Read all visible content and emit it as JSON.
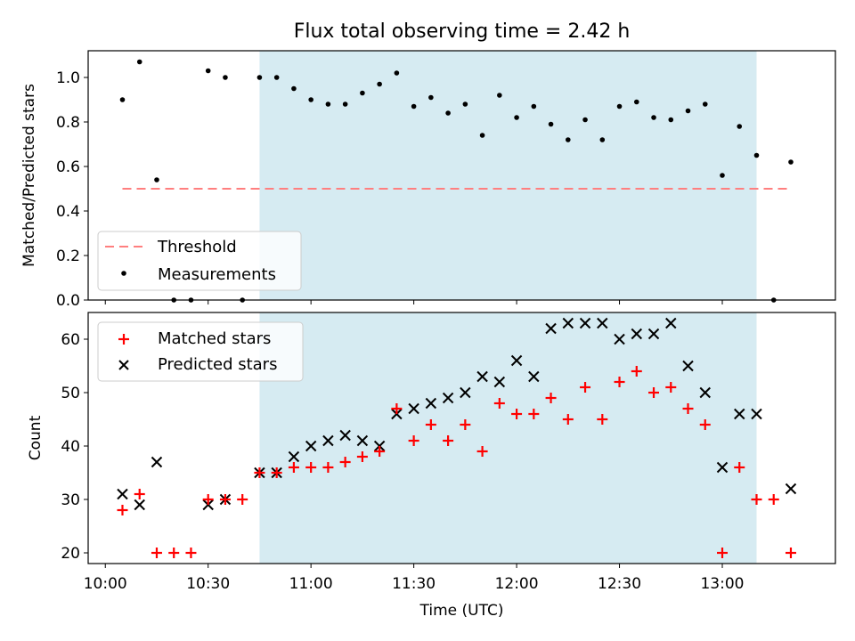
{
  "chart_data": [
    {
      "type": "scatter",
      "title": "Flux total observing time = 2.42 h",
      "ylabel": "Matched/Predicted stars",
      "xlim_minutes": [
        595,
        813
      ],
      "ylim": [
        0,
        1.12
      ],
      "yticks": [
        0.0,
        0.2,
        0.4,
        0.6,
        0.8,
        1.0
      ],
      "ytick_labels": [
        "0.0",
        "0.2",
        "0.4",
        "0.6",
        "0.8",
        "1.0"
      ],
      "shaded_interval_minutes": [
        645,
        790
      ],
      "threshold": {
        "name": "Threshold",
        "value": 0.5,
        "x_range_minutes": [
          605,
          800
        ],
        "color": "#ff7f7f"
      },
      "series": [
        {
          "name": "Measurements",
          "marker": "dot",
          "color": "#000000",
          "x": [
            605,
            610,
            615,
            620,
            625,
            630,
            635,
            640,
            645,
            650,
            655,
            660,
            665,
            670,
            675,
            680,
            685,
            690,
            695,
            700,
            705,
            710,
            715,
            720,
            725,
            730,
            735,
            740,
            745,
            750,
            755,
            760,
            765,
            770,
            775,
            780,
            785,
            790,
            795,
            800
          ],
          "values": [
            0.9,
            1.07,
            0.54,
            0.0,
            0.0,
            1.03,
            1.0,
            0.0,
            1.0,
            1.0,
            0.95,
            0.9,
            0.88,
            0.88,
            0.93,
            0.97,
            1.02,
            0.87,
            0.91,
            0.84,
            0.88,
            0.74,
            0.92,
            0.82,
            0.87,
            0.79,
            0.72,
            0.81,
            0.72,
            0.87,
            0.89,
            0.82,
            0.81,
            0.85,
            0.88,
            0.56,
            0.78,
            0.65,
            0.0,
            0.62
          ]
        }
      ]
    },
    {
      "type": "scatter",
      "xlabel": "Time (UTC)",
      "ylabel": "Count",
      "xlim_minutes": [
        595,
        813
      ],
      "ylim": [
        18,
        65
      ],
      "xticks_minutes": [
        600,
        630,
        660,
        690,
        720,
        750,
        780
      ],
      "xtick_labels": [
        "10:00",
        "10:30",
        "11:00",
        "11:30",
        "12:00",
        "12:30",
        "13:00"
      ],
      "yticks": [
        20,
        30,
        40,
        50,
        60
      ],
      "ytick_labels": [
        "20",
        "30",
        "40",
        "50",
        "60"
      ],
      "shaded_interval_minutes": [
        645,
        790
      ],
      "series": [
        {
          "name": "Matched stars",
          "marker": "plus",
          "color": "#ff0000",
          "x": [
            605,
            610,
            615,
            620,
            625,
            630,
            635,
            640,
            645,
            650,
            655,
            660,
            665,
            670,
            675,
            680,
            685,
            690,
            695,
            700,
            705,
            710,
            715,
            720,
            725,
            730,
            735,
            740,
            745,
            750,
            755,
            760,
            765,
            770,
            775,
            780,
            785,
            790,
            795,
            800
          ],
          "values": [
            28,
            31,
            20,
            20,
            20,
            30,
            30,
            30,
            35,
            35,
            36,
            36,
            36,
            37,
            38,
            39,
            47,
            41,
            44,
            41,
            44,
            39,
            48,
            46,
            46,
            49,
            45,
            51,
            45,
            52,
            54,
            50,
            51,
            47,
            44,
            20,
            36,
            30,
            30,
            20
          ]
        },
        {
          "name": "Predicted stars",
          "marker": "x",
          "color": "#000000",
          "x": [
            605,
            610,
            615,
            630,
            635,
            645,
            650,
            655,
            660,
            665,
            670,
            675,
            680,
            685,
            690,
            695,
            700,
            705,
            710,
            715,
            720,
            725,
            730,
            735,
            740,
            745,
            750,
            755,
            760,
            765,
            770,
            775,
            780,
            785,
            790,
            800
          ],
          "values": [
            31,
            29,
            37,
            29,
            30,
            35,
            35,
            38,
            40,
            41,
            42,
            41,
            40,
            46,
            47,
            48,
            49,
            50,
            53,
            52,
            56,
            53,
            62,
            63,
            63,
            63,
            60,
            61,
            61,
            63,
            55,
            50,
            36,
            46,
            46,
            32
          ]
        }
      ]
    }
  ]
}
